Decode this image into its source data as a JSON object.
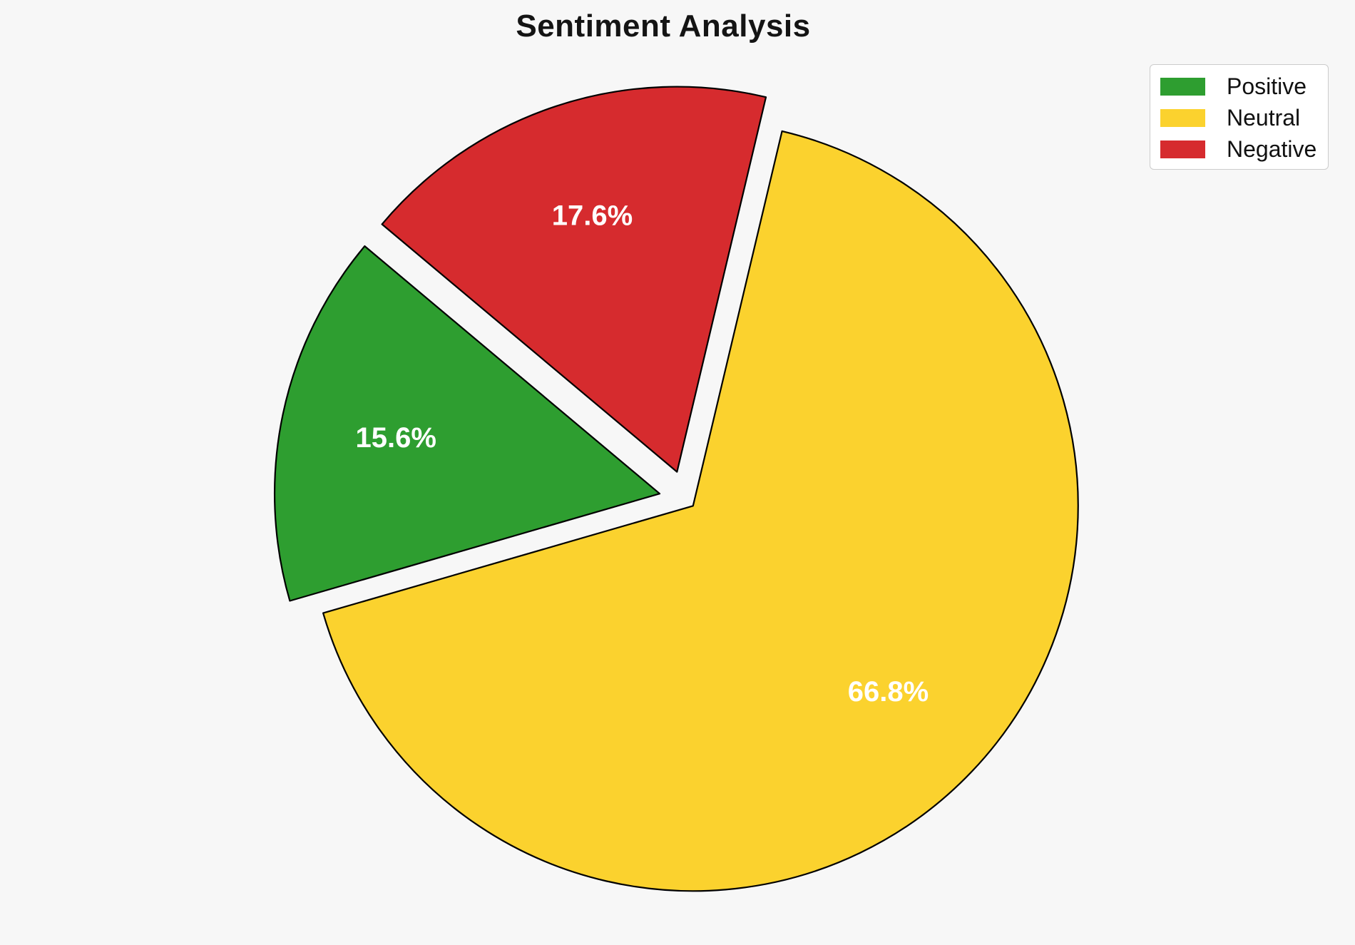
{
  "page": {
    "background": "#f7f7f7"
  },
  "title": {
    "text": "Sentiment Analysis"
  },
  "legend": {
    "position": "upper right",
    "items": [
      {
        "label": "Positive",
        "color": "#2e9e30"
      },
      {
        "label": "Neutral",
        "color": "#fbd22e"
      },
      {
        "label": "Negative",
        "color": "#d62b2e"
      }
    ]
  },
  "chart_data": {
    "type": "pie",
    "title": "Sentiment Analysis",
    "categories": [
      "Positive",
      "Neutral",
      "Negative"
    ],
    "values": [
      15.6,
      66.8,
      17.6
    ],
    "unit": "%",
    "pct_labels": [
      "15.6%",
      "66.8%",
      "17.6%"
    ],
    "colors": [
      "#2e9e30",
      "#fbd22e",
      "#d62b2e"
    ],
    "start_angle": 140,
    "counterclock": true,
    "explode": [
      0.07,
      0.025,
      0.075
    ],
    "pct_distance": 0.7,
    "center": [
      962,
      700
    ],
    "radius": 540,
    "edge_color": "#000000",
    "edge_width": 2.2,
    "pct_label_color": "#ffffff",
    "legend_position": "upper right",
    "grid": false
  }
}
